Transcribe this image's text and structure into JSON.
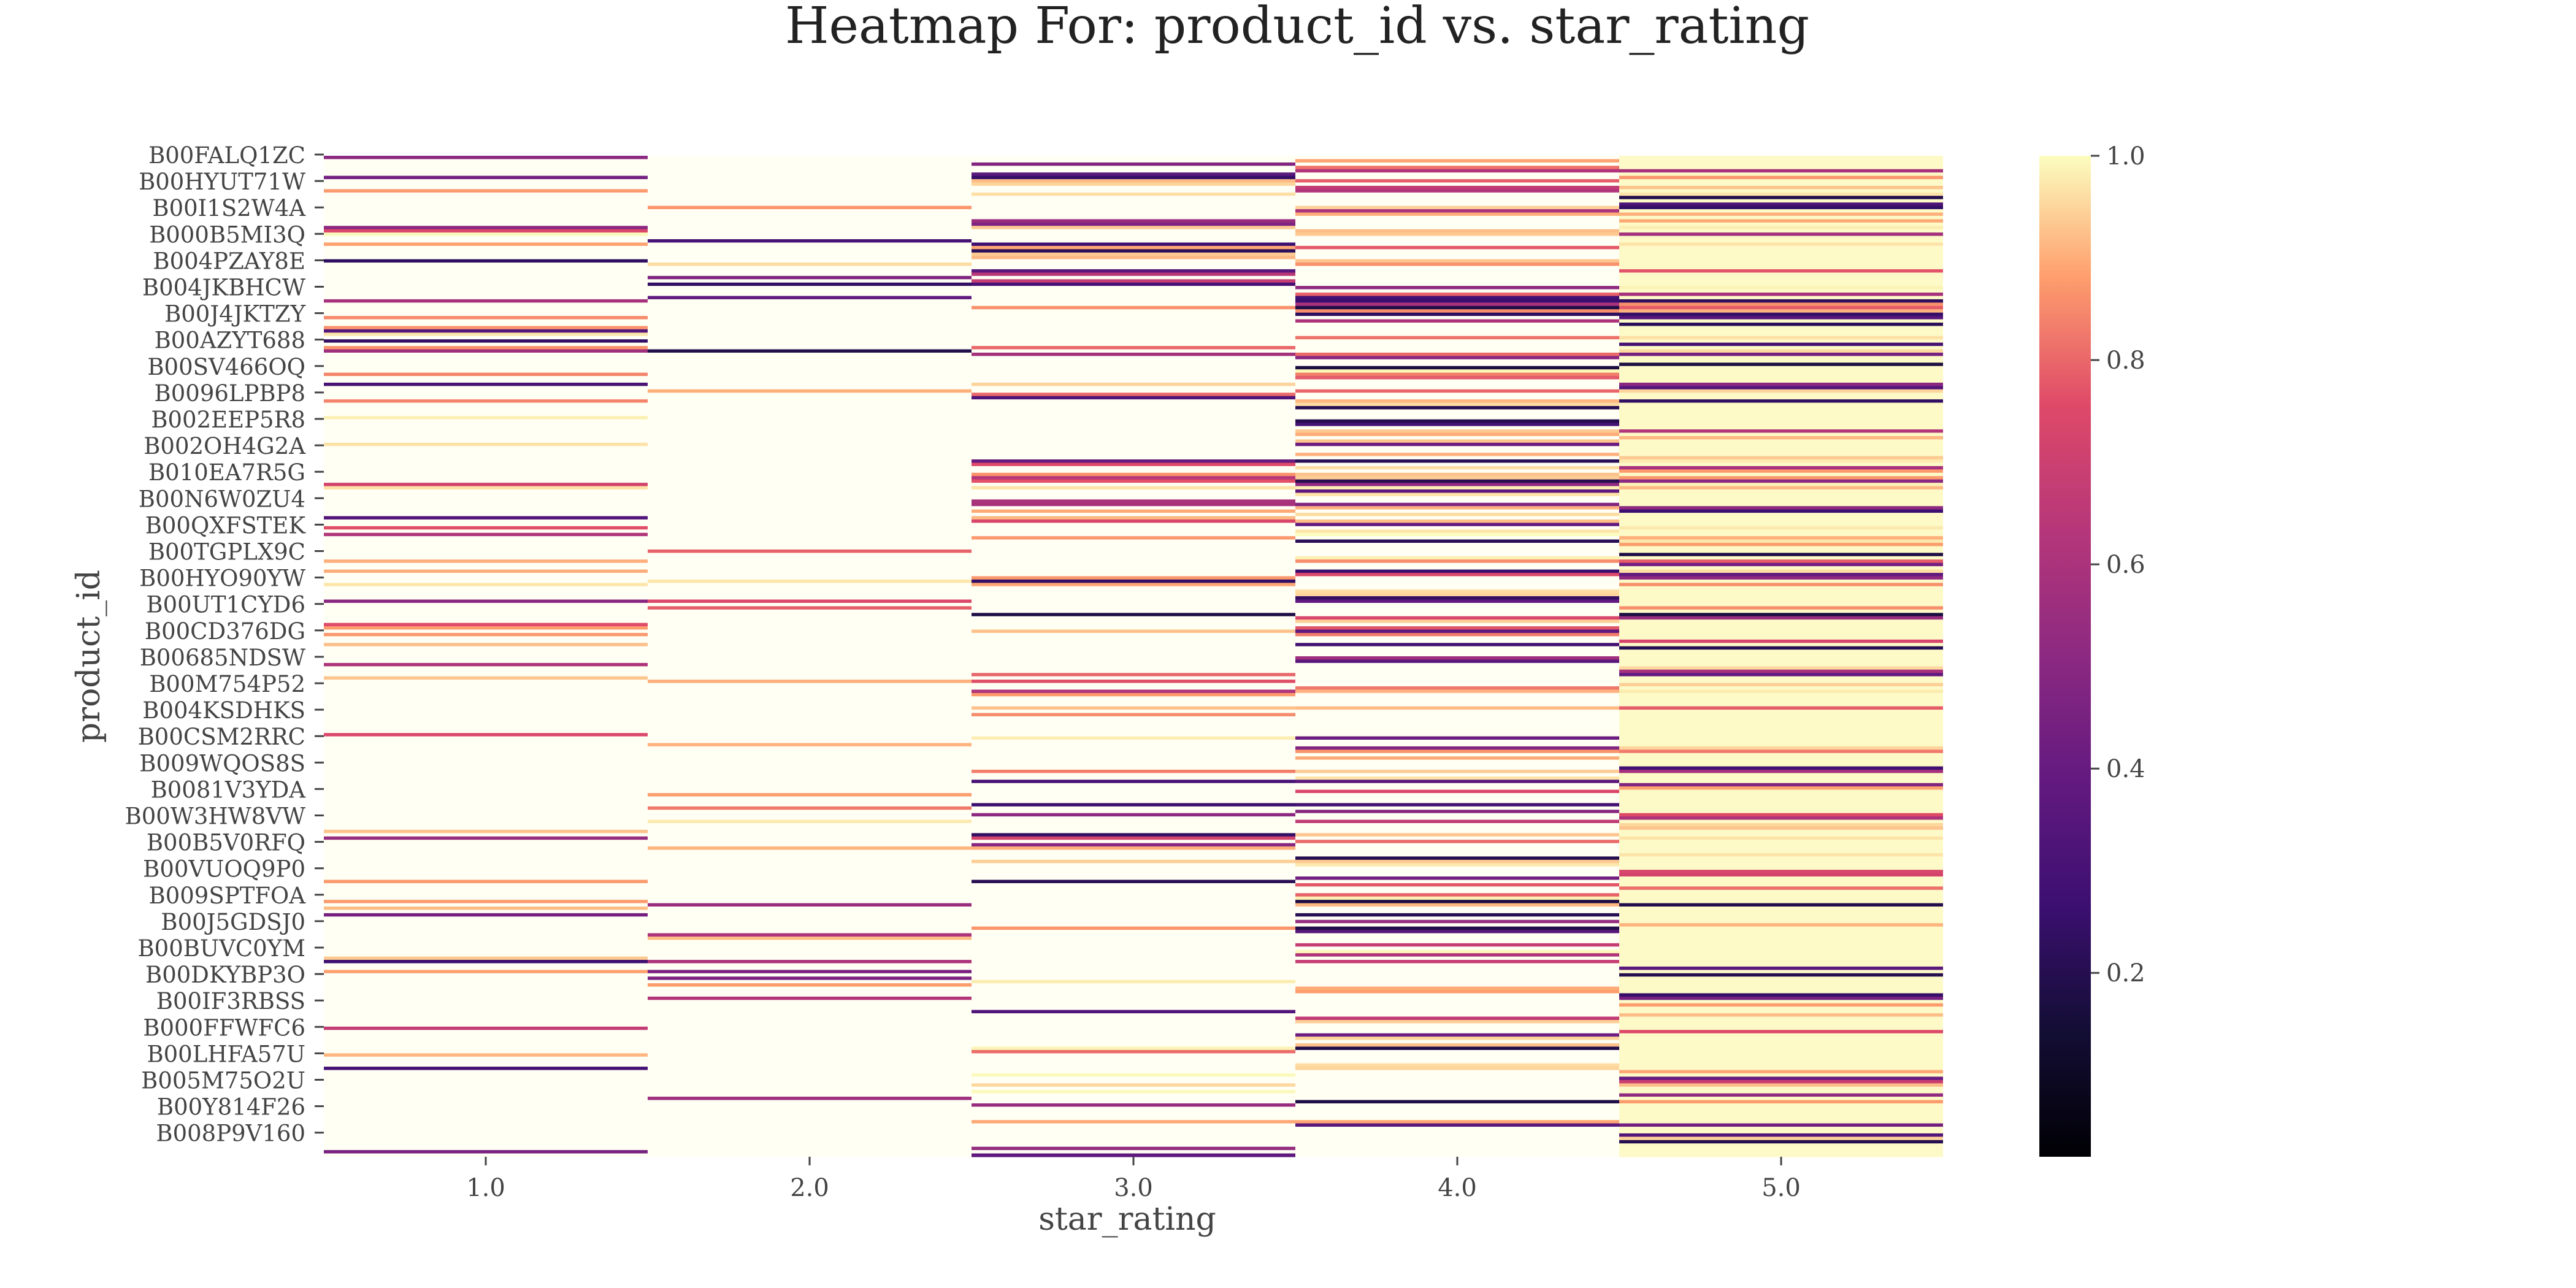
{
  "chart_data": {
    "type": "heatmap",
    "title": "Heatmap For: product_id vs. star_rating",
    "xlabel": "star_rating",
    "ylabel": "product_id",
    "x_categories": [
      "1.0",
      "2.0",
      "3.0",
      "4.0",
      "5.0"
    ],
    "y_tick_labels": [
      "B00FALQ1ZC",
      "B00HYUT71W",
      "B00I1S2W4A",
      "B000B5MI3Q",
      "B004PZAY8E",
      "B004JKBHCW",
      "B00J4JKTZY",
      "B00AZYT688",
      "B00SV466OQ",
      "B0096LPBP8",
      "B002EEP5R8",
      "B002OH4G2A",
      "B010EA7R5G",
      "B00N6W0ZU4",
      "B00QXFSTEK",
      "B00TGPLX9C",
      "B00HYO90YW",
      "B00UT1CYD6",
      "B00CD376DG",
      "B00685NDSW",
      "B00M754P52",
      "B004KSDHKS",
      "B00CSM2RRC",
      "B009WQOS8S",
      "B0081V3YDA",
      "B00W3HW8VW",
      "B00B5V0RFQ",
      "B00VUOQ9P0",
      "B009SPTFOA",
      "B00J5GDSJ0",
      "B00BUVC0YM",
      "B00DKYBP3O",
      "B00IF3RBSS",
      "B000FFWFC6",
      "B00LHFA57U",
      "B005M75O2U",
      "B00Y814F26",
      "B008P9V160"
    ],
    "colorbar": {
      "colormap": "magma",
      "range": [
        0.02,
        1.0
      ],
      "ticks": [
        "0.2",
        "0.4",
        "0.6",
        "0.8",
        "1.0"
      ]
    },
    "column_mean_normalized_values": [
      0.93,
      0.95,
      0.86,
      0.75,
      0.82
    ],
    "column_light_row_fraction": [
      0.78,
      0.88,
      0.72,
      0.42,
      0.55
    ],
    "grid": false
  }
}
